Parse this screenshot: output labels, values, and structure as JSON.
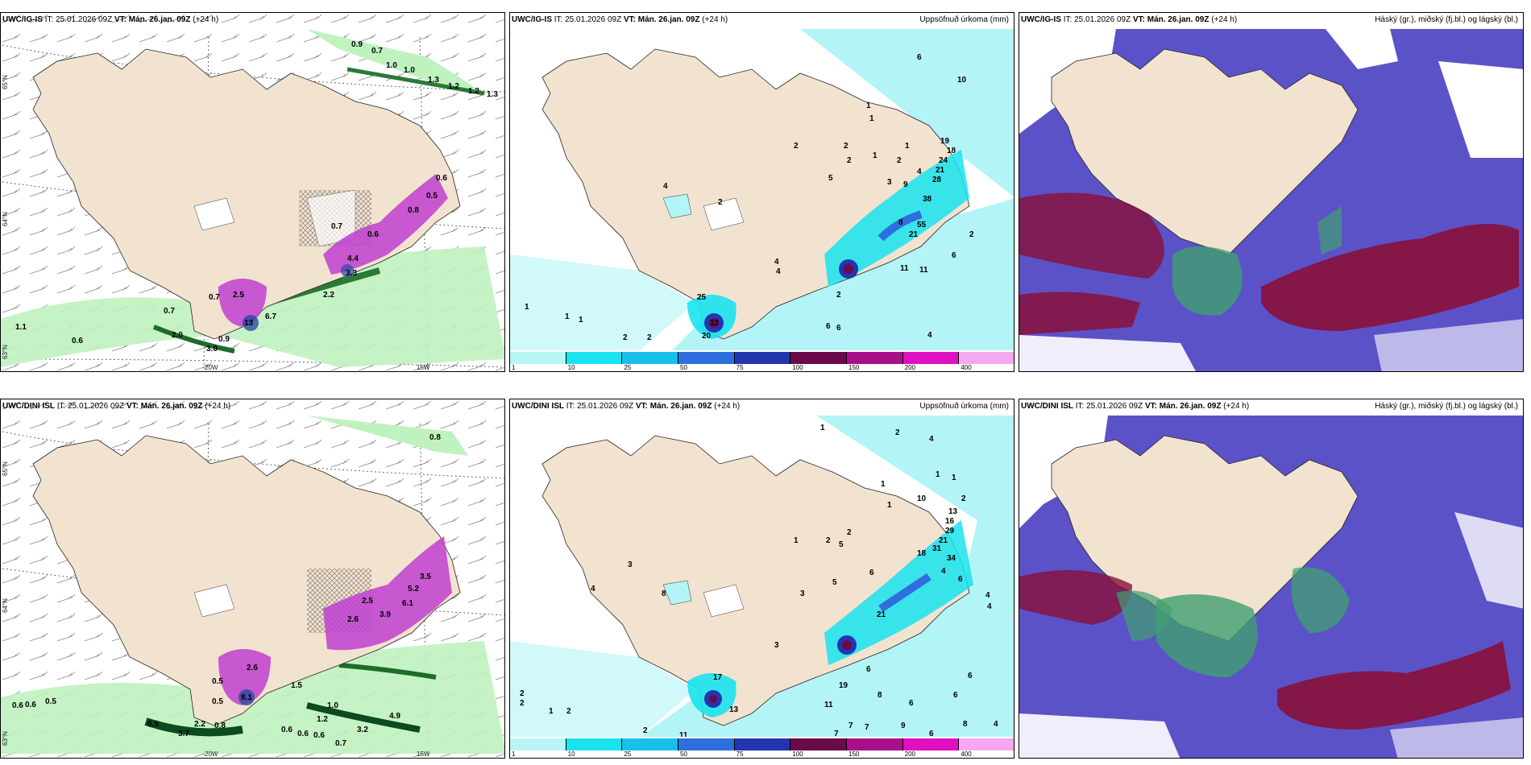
{
  "panels": [
    {
      "id": "p1",
      "model": "UWC/IG-IS",
      "it": "IT: 25.01.2026 09Z",
      "vt_label": "VT:",
      "vt": "Mán. 26.jan. 09Z",
      "lead": "(+24 h)",
      "right_title": "",
      "type": "pressure",
      "labels": [
        "0.9",
        "0.7",
        "1.0",
        "1.0",
        "1.3",
        "1.2",
        "1.2",
        "1.3",
        "0.7",
        "0.6",
        "0.8",
        "0.5",
        "0.6",
        "13",
        "2.5",
        "6.7",
        "4.4",
        "2.2",
        "3.3",
        "0.7",
        "1.1",
        "0.6",
        "0.7",
        "2.0",
        "0.9",
        "3.0"
      ],
      "axes": {
        "lat_65": "65°N",
        "lat_64": "64°N",
        "lat_63": "63°N",
        "lon_20": "20W",
        "lon_15": "15W"
      }
    },
    {
      "id": "p2",
      "model": "UWC/IG-IS",
      "it": "IT: 25.01.2026 09Z",
      "vt_label": "VT:",
      "vt": "Mán. 26.jan. 09Z",
      "lead": "(+24 h)",
      "right_title": "Uppsöfnuð úrkoma (mm)",
      "type": "precip",
      "labels": [
        "6",
        "10",
        "1",
        "1",
        "2",
        "2",
        "2",
        "1",
        "2",
        "1",
        "4",
        "5",
        "3",
        "9",
        "19",
        "18",
        "24",
        "21",
        "28",
        "38",
        "55",
        "21",
        "2",
        "6",
        "11",
        "11",
        "4",
        "2",
        "25",
        "1",
        "1",
        "1",
        "2",
        "2",
        "20",
        "6",
        "6",
        "4",
        "4",
        "2",
        "4",
        "8",
        "12"
      ]
    },
    {
      "id": "p3",
      "model": "UWC/IG-IS",
      "it": "IT: 25.01.2026 09Z",
      "vt_label": "VT:",
      "vt": "Mán. 26.jan. 09Z",
      "lead": "(+24 h)",
      "right_title": "Háský (gr.), miðský (fj.bl.) og lágský (bl.)",
      "type": "clouds",
      "labels": []
    },
    {
      "id": "p4",
      "model": "UWC/DINI ISL",
      "it": "IT: 25.01.2026 09Z",
      "vt_label": "VT:",
      "vt": "Mán. 26.jan. 09Z",
      "lead": "(+24 h)",
      "right_title": "",
      "type": "pressure",
      "labels": [
        "0.8",
        "3.5",
        "2.6",
        "5.2",
        "2.5",
        "6.1",
        "8.1",
        "2.6",
        "3.9",
        "0.5",
        "0.6",
        "0.6",
        "0.5",
        "0.5",
        "3.7",
        "1.5",
        "0.8",
        "0.6",
        "0.6",
        "0.6",
        "0.7",
        "1.0",
        "1.2",
        "4.9",
        "3.2",
        "2.2",
        "0.5"
      ],
      "axes": {
        "lat_65": "65°N",
        "lat_64": "64°N",
        "lat_63": "63°N",
        "lon_20": "20W",
        "lon_15": "15W"
      }
    },
    {
      "id": "p5",
      "model": "UWC/DINI ISL",
      "it": "IT: 25.01.2026 09Z",
      "vt_label": "VT:",
      "vt": "Mán. 26.jan. 09Z",
      "lead": "(+24 h)",
      "right_title": "Uppsöfnuð úrkoma (mm)",
      "type": "precip",
      "labels": [
        "1",
        "2",
        "4",
        "1",
        "1",
        "1",
        "10",
        "2",
        "1",
        "13",
        "16",
        "29",
        "21",
        "31",
        "34",
        "18",
        "4",
        "4",
        "4",
        "1",
        "2",
        "2",
        "5",
        "6",
        "3",
        "5",
        "4",
        "6",
        "8",
        "3",
        "17",
        "3",
        "2",
        "2",
        "1",
        "2",
        "2",
        "11",
        "13",
        "11",
        "19",
        "8",
        "6",
        "7",
        "7",
        "7",
        "9",
        "6",
        "6",
        "6",
        "6",
        "4",
        "8",
        "21"
      ]
    },
    {
      "id": "p6",
      "model": "UWC/DINI ISL",
      "it": "IT: 25.01.2026 09Z",
      "vt_label": "VT:",
      "vt": "Mán. 26.jan. 09Z",
      "lead": "(+24 h)",
      "right_title": "Háský (gr.), miðský (fj.bl.) og lágský (bl.)",
      "type": "clouds",
      "labels": []
    }
  ],
  "colorbar": {
    "ticks": [
      "1",
      "10",
      "25",
      "50",
      "75",
      "100",
      "150",
      "200",
      "400"
    ],
    "colors": [
      "#b8f5f7",
      "#19e3ee",
      "#19c0ea",
      "#2f6fdd",
      "#2236b0",
      "#6a0a4a",
      "#a8108a",
      "#e010c0",
      "#f5a8f0"
    ]
  },
  "colors": {
    "land": "#f2e2d0",
    "light_blue": "#b3f5f7",
    "cyan": "#19e3ee",
    "mid_blue": "#18b5e6",
    "dark_blue": "#1f3fa8",
    "maroon": "#7a0a3a",
    "green_light": "#bff2bf",
    "green_dark": "#0c4a20",
    "magenta": "#c040d0",
    "cloud_blue": "#5b52c8",
    "cloud_red": "#8a0f3a",
    "cloud_green": "#40a070"
  }
}
